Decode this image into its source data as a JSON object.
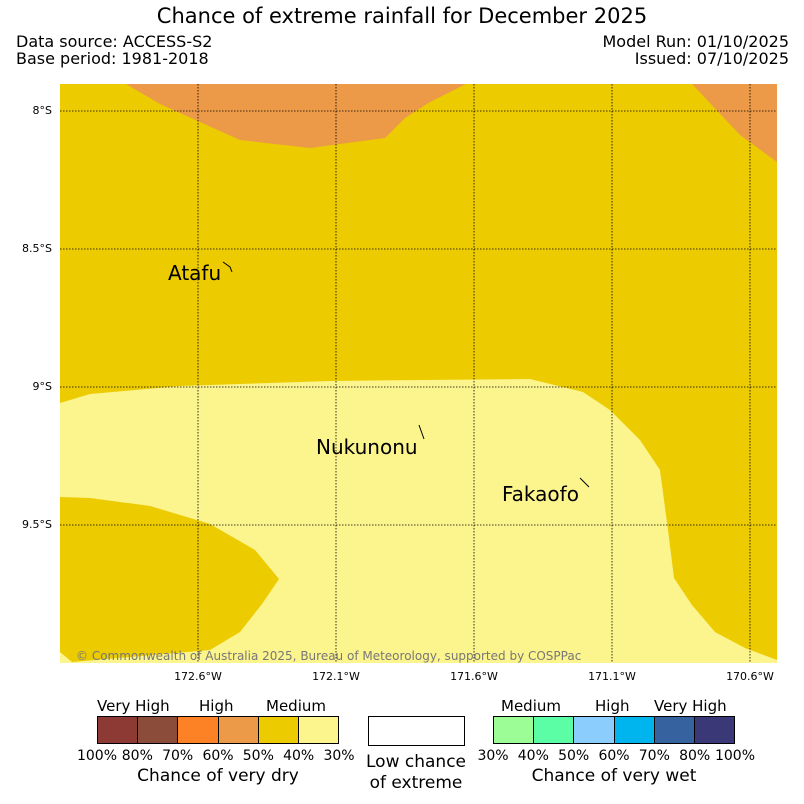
{
  "header": {
    "title": "Chance of extreme rainfall for December 2025",
    "data_source": "Data source: ACCESS-S2",
    "base_period": "Base period: 1981-2018",
    "model_run": "Model Run: 01/10/2025",
    "issued": "Issued: 07/10/2025"
  },
  "map": {
    "lat_ticks": [
      "8°S",
      "8.5°S",
      "9°S",
      "9.5°S"
    ],
    "lon_ticks": [
      "172.6°W",
      "172.1°W",
      "171.6°W",
      "171.1°W",
      "170.6°W"
    ],
    "places": [
      {
        "name": "Atafu"
      },
      {
        "name": "Nukunonu"
      },
      {
        "name": "Fakaofo"
      }
    ],
    "copyright": "© Commonwealth of Australia 2025, Bureau of Meteorology, supported by COSPPac",
    "colors": {
      "high_dry": "#ec9a48",
      "medium_dry": "#eccb00",
      "medium_low_dry": "#fcf48c",
      "grid": "#000000"
    }
  },
  "legend": {
    "dry": {
      "levels": [
        "Very High",
        "High",
        "Medium"
      ],
      "colors": [
        "#8e3a34",
        "#8b4c3a",
        "#fd8226",
        "#ec9a48",
        "#eccb00",
        "#fcf48c"
      ],
      "percentages": [
        "100%",
        "80%",
        "70%",
        "60%",
        "50%",
        "40%",
        "30%"
      ],
      "caption": "Chance of very dry"
    },
    "low": {
      "caption": "Low chance of extreme",
      "color": "#ffffff"
    },
    "wet": {
      "levels": [
        "Medium",
        "High",
        "Very High"
      ],
      "colors": [
        "#9cfd96",
        "#5bfea5",
        "#8bcefd",
        "#00b4ee",
        "#3762a0",
        "#3b3878"
      ],
      "percentages": [
        "30%",
        "40%",
        "50%",
        "60%",
        "70%",
        "80%",
        "100%"
      ],
      "caption": "Chance of very wet"
    }
  }
}
